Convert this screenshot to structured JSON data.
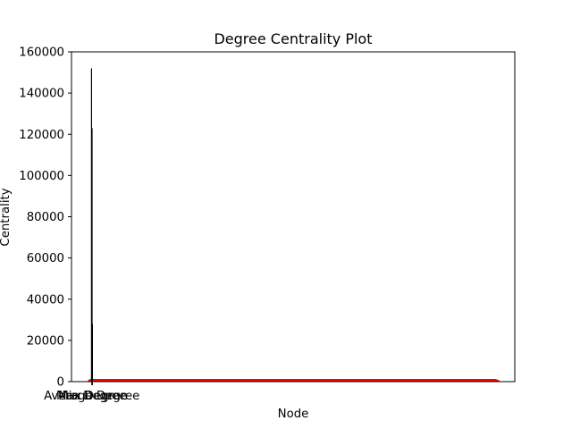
{
  "chart_data": {
    "type": "line",
    "title": "Degree Centrality Plot",
    "xlabel": "Node",
    "ylabel": "Centrality",
    "ylim": [
      0,
      160000
    ],
    "yticks": [
      0,
      20000,
      40000,
      60000,
      80000,
      100000,
      120000,
      140000,
      160000
    ],
    "xticks": [
      "Average Degree",
      "Max Degree",
      "Min Degree"
    ],
    "grid": false,
    "series": [
      {
        "kind": "spike",
        "color": "#000000",
        "peaks": [
          152000,
          123000,
          56000,
          28000,
          9000
        ]
      },
      {
        "kind": "band",
        "color": "#ff0000",
        "values": [
          1000,
          1000
        ]
      }
    ]
  }
}
